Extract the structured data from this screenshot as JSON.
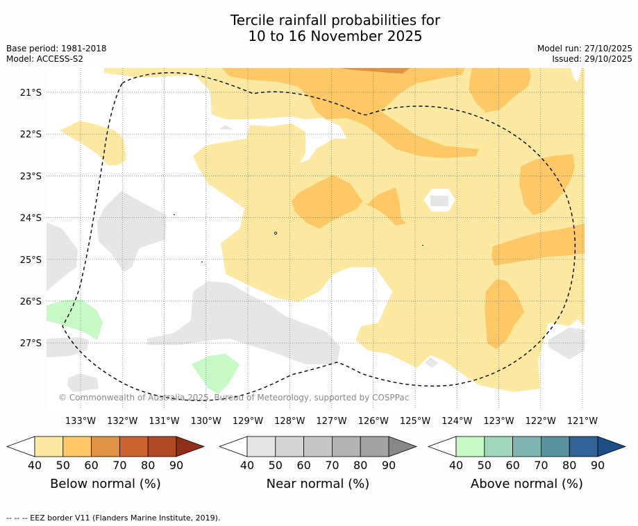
{
  "title_line1": "Tercile rainfall probabilities for",
  "title_line2": "10 to 16 November 2025",
  "base_period": "Base period: 1981-2018",
  "model": "Model: ACCESS-S2",
  "model_run": "Model run: 27/10/2025",
  "issued": "Issued: 29/10/2025",
  "copyright": "© Commonwealth of Australia 2025, Bureau of Meteorology, supported by COSPPac",
  "footer": "-- -- -- EEZ border V11 (Flanders Marine Institute, 2019).",
  "lat_labels": [
    "21°S",
    "22°S",
    "23°S",
    "24°S",
    "25°S",
    "26°S",
    "27°S"
  ],
  "lon_labels": [
    "133°W",
    "132°W",
    "131°W",
    "130°W",
    "129°W",
    "128°W",
    "127°W",
    "126°W",
    "125°W",
    "124°W",
    "123°W",
    "122°W",
    "121°W"
  ],
  "colorbars": [
    {
      "name": "below",
      "title": "Below normal (%)",
      "ticks": [
        "40",
        "50",
        "60",
        "70",
        "80",
        "90"
      ],
      "colors": [
        "#fde9a1",
        "#fdc865",
        "#e19244",
        "#cc6131",
        "#b04a26",
        "#8f2e1b"
      ]
    },
    {
      "name": "near",
      "title": "Near normal (%)",
      "ticks": [
        "40",
        "50",
        "60",
        "70",
        "80",
        "90"
      ],
      "colors": [
        "#e6e6e6",
        "#d6d6d6",
        "#c7c7c7",
        "#b3b3b3",
        "#a3a3a3",
        "#888888"
      ]
    },
    {
      "name": "above",
      "title": "Above normal (%)",
      "ticks": [
        "40",
        "50",
        "60",
        "70",
        "80",
        "90"
      ],
      "colors": [
        "#c8fac8",
        "#a2d7bd",
        "#7fb6b0",
        "#5b92a0",
        "#2f6297",
        "#1c4d85"
      ]
    }
  ],
  "colors": {
    "below1": "#fde9a1",
    "below2": "#fdc865",
    "below3": "#e19244",
    "near1": "#e6e6e6",
    "above1": "#c8fac8"
  }
}
